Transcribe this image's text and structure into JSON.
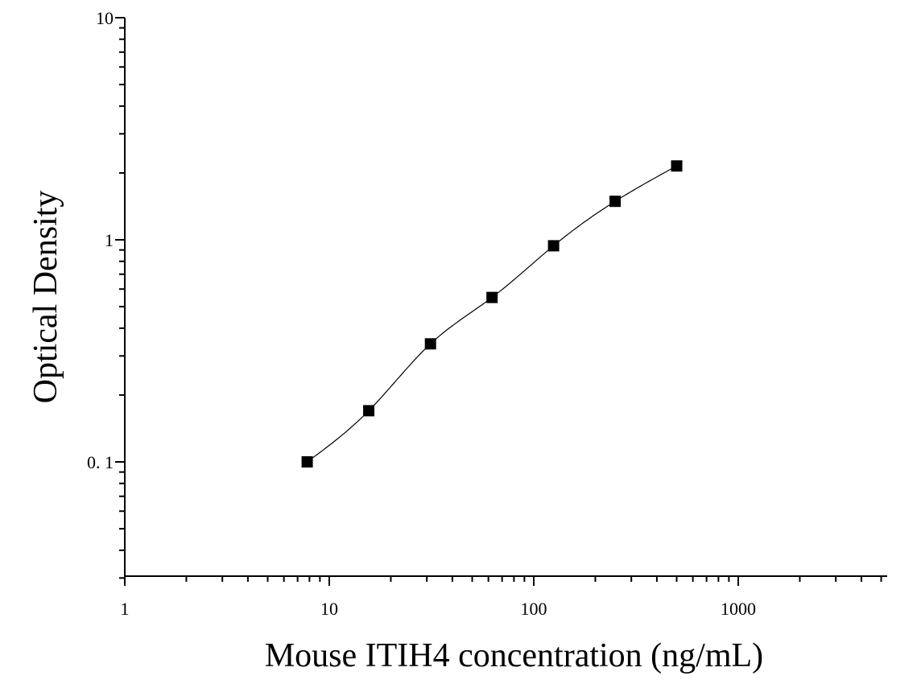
{
  "chart_data": {
    "type": "scatter",
    "xlabel": "Mouse ITIH4 concentration (ng/mL)",
    "ylabel": "Optical Density",
    "x_scale": "log",
    "y_scale": "log",
    "xlim": [
      1,
      5000
    ],
    "ylim": [
      0.03,
      10
    ],
    "x_ticks": [
      1,
      10,
      100,
      1000
    ],
    "x_tick_labels": [
      "1",
      "10",
      "100",
      "1000"
    ],
    "y_ticks": [
      0.1,
      1,
      10
    ],
    "y_tick_labels": [
      "0. 1",
      "1",
      "10"
    ],
    "grid": false,
    "marker": "square",
    "color": "#000000",
    "points": [
      {
        "x": 7.8,
        "y": 0.1
      },
      {
        "x": 15.6,
        "y": 0.17
      },
      {
        "x": 31.25,
        "y": 0.34
      },
      {
        "x": 62.5,
        "y": 0.55
      },
      {
        "x": 125,
        "y": 0.94
      },
      {
        "x": 250,
        "y": 1.49
      },
      {
        "x": 500,
        "y": 2.15
      }
    ],
    "fit_curve": true
  }
}
